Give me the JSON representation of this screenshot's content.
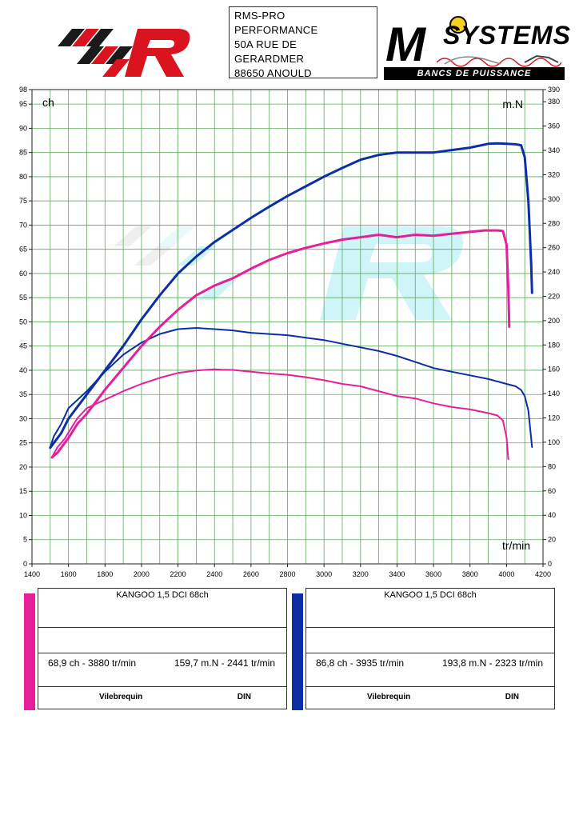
{
  "header": {
    "address_lines": [
      "RMS-PRO",
      "PERFORMANCE",
      "50A RUE DE",
      "GERARDMER",
      "88650 ANOULD"
    ],
    "logo_right_word": "SYSTEMS",
    "logo_right_letter": "M",
    "logo_right_tagline": "BANCS DE PUISSANCE"
  },
  "colors": {
    "run1": "#e61e9c",
    "run2": "#0d2fa6",
    "grid": "#5ea85e",
    "watermark": "#a8ecf4"
  },
  "chart_data": {
    "type": "line",
    "x_unit_label": "tr/min",
    "left_unit_label": "ch",
    "right_unit_label": "m.N",
    "xlim": [
      1400,
      4200
    ],
    "x_ticks": [
      1400,
      1600,
      1800,
      2000,
      2200,
      2400,
      2600,
      2800,
      3000,
      3200,
      3400,
      3600,
      3800,
      4000,
      4200
    ],
    "ylim_left": [
      0,
      98
    ],
    "y_ticks_left": [
      0,
      5,
      10,
      15,
      20,
      25,
      30,
      35,
      40,
      45,
      50,
      55,
      60,
      65,
      70,
      75,
      80,
      85,
      90,
      95,
      98
    ],
    "ylim_right": [
      0,
      390
    ],
    "y_ticks_right": [
      0,
      20,
      40,
      60,
      80,
      100,
      120,
      140,
      160,
      180,
      200,
      220,
      240,
      260,
      280,
      300,
      320,
      340,
      360,
      380,
      390
    ],
    "grid": true,
    "series": [
      {
        "color": "#0d2fa6",
        "axis": "left",
        "points": [
          [
            1500,
            24
          ],
          [
            1520,
            25
          ],
          [
            1560,
            27
          ],
          [
            1600,
            30
          ],
          [
            1700,
            35
          ],
          [
            1800,
            40
          ],
          [
            1900,
            45
          ],
          [
            2000,
            50.5
          ],
          [
            2100,
            55.5
          ],
          [
            2200,
            60
          ],
          [
            2300,
            63.5
          ],
          [
            2400,
            66.5
          ],
          [
            2500,
            69
          ],
          [
            2600,
            71.5
          ],
          [
            2700,
            73.8
          ],
          [
            2800,
            76
          ],
          [
            2900,
            78
          ],
          [
            3000,
            80
          ],
          [
            3100,
            81.8
          ],
          [
            3200,
            83.5
          ],
          [
            3300,
            84.5
          ],
          [
            3400,
            85
          ],
          [
            3500,
            85
          ],
          [
            3600,
            85
          ],
          [
            3700,
            85.5
          ],
          [
            3800,
            86
          ],
          [
            3900,
            86.8
          ],
          [
            3950,
            86.9
          ],
          [
            4000,
            86.8
          ],
          [
            4050,
            86.7
          ],
          [
            4080,
            86.5
          ],
          [
            4100,
            84
          ],
          [
            4120,
            75
          ],
          [
            4135,
            62
          ],
          [
            4140,
            56
          ]
        ]
      },
      {
        "color": "#0d2fa6",
        "axis": "right",
        "points": [
          [
            1500,
            96
          ],
          [
            1520,
            105
          ],
          [
            1560,
            115
          ],
          [
            1600,
            128
          ],
          [
            1700,
            142
          ],
          [
            1800,
            158
          ],
          [
            1900,
            172
          ],
          [
            2000,
            182
          ],
          [
            2100,
            189
          ],
          [
            2200,
            193
          ],
          [
            2300,
            194
          ],
          [
            2400,
            193
          ],
          [
            2500,
            192
          ],
          [
            2600,
            190
          ],
          [
            2700,
            189
          ],
          [
            2800,
            188
          ],
          [
            2900,
            186
          ],
          [
            3000,
            184
          ],
          [
            3100,
            181
          ],
          [
            3200,
            178
          ],
          [
            3300,
            175
          ],
          [
            3400,
            171
          ],
          [
            3500,
            166
          ],
          [
            3600,
            161
          ],
          [
            3700,
            158
          ],
          [
            3800,
            155
          ],
          [
            3900,
            152
          ],
          [
            4000,
            148
          ],
          [
            4050,
            146
          ],
          [
            4080,
            143
          ],
          [
            4100,
            138
          ],
          [
            4120,
            126
          ],
          [
            4140,
            96
          ]
        ]
      },
      {
        "color": "#e61e9c",
        "axis": "left",
        "points": [
          [
            1510,
            22
          ],
          [
            1540,
            23
          ],
          [
            1580,
            25
          ],
          [
            1600,
            26
          ],
          [
            1650,
            29
          ],
          [
            1700,
            31
          ],
          [
            1800,
            36
          ],
          [
            1900,
            40.5
          ],
          [
            2000,
            45
          ],
          [
            2100,
            49
          ],
          [
            2200,
            52.5
          ],
          [
            2300,
            55.5
          ],
          [
            2400,
            57.5
          ],
          [
            2500,
            59
          ],
          [
            2600,
            61
          ],
          [
            2700,
            62.8
          ],
          [
            2800,
            64.2
          ],
          [
            2900,
            65.3
          ],
          [
            3000,
            66.2
          ],
          [
            3100,
            67
          ],
          [
            3200,
            67.5
          ],
          [
            3300,
            68
          ],
          [
            3400,
            67.5
          ],
          [
            3500,
            68
          ],
          [
            3600,
            67.8
          ],
          [
            3700,
            68.2
          ],
          [
            3800,
            68.6
          ],
          [
            3880,
            68.9
          ],
          [
            3950,
            68.9
          ],
          [
            3980,
            68.8
          ],
          [
            4000,
            66
          ],
          [
            4010,
            57
          ],
          [
            4015,
            49
          ]
        ]
      },
      {
        "color": "#e61e9c",
        "axis": "right",
        "points": [
          [
            1510,
            88
          ],
          [
            1540,
            96
          ],
          [
            1580,
            103
          ],
          [
            1600,
            108
          ],
          [
            1650,
            120
          ],
          [
            1700,
            128
          ],
          [
            1800,
            135
          ],
          [
            1900,
            142
          ],
          [
            2000,
            148
          ],
          [
            2100,
            153
          ],
          [
            2200,
            157
          ],
          [
            2300,
            159
          ],
          [
            2400,
            160
          ],
          [
            2441,
            159.7
          ],
          [
            2500,
            159.5
          ],
          [
            2600,
            158
          ],
          [
            2700,
            156.5
          ],
          [
            2800,
            155.5
          ],
          [
            2900,
            153.5
          ],
          [
            3000,
            151
          ],
          [
            3100,
            148
          ],
          [
            3200,
            146
          ],
          [
            3300,
            142
          ],
          [
            3400,
            138
          ],
          [
            3500,
            136
          ],
          [
            3600,
            132
          ],
          [
            3700,
            129
          ],
          [
            3800,
            127
          ],
          [
            3900,
            124
          ],
          [
            3950,
            122
          ],
          [
            3980,
            118
          ],
          [
            4000,
            104
          ],
          [
            4010,
            86
          ]
        ]
      }
    ]
  },
  "cards": [
    {
      "title": "KANGOO 1,5 DCI 68ch",
      "power": "68,9 ch - 3880 tr/min",
      "torque": "159,7 m.N - 2441 tr/min",
      "label_left": "Vilebrequin",
      "label_right": "DIN",
      "color": "#e61e9c"
    },
    {
      "title": "KANGOO 1,5 DCI 68ch",
      "power": "86,8 ch - 3935 tr/min",
      "torque": "193,8 m.N - 2323 tr/min",
      "label_left": "Vilebrequin",
      "label_right": "DIN",
      "color": "#0d2fa6"
    }
  ]
}
